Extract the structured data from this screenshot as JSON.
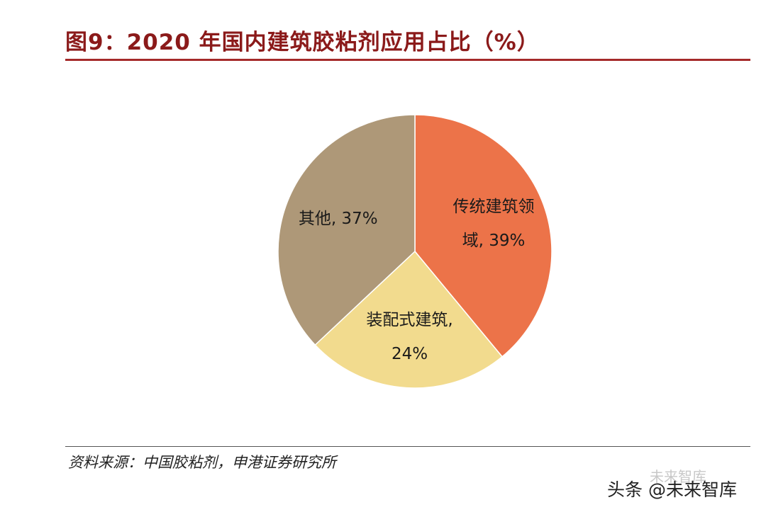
{
  "header": {
    "title": "图9：2020 年国内建筑胶粘剂应用占比（%）"
  },
  "chart_data": {
    "type": "pie",
    "title": "图9：2020 年国内建筑胶粘剂应用占比（%）",
    "start": "12 o'clock, clockwise",
    "slices": [
      {
        "label_lines": [
          "传统建筑领",
          "域, 39%"
        ],
        "value": 39,
        "color": "#ec7349"
      },
      {
        "label_lines": [
          "装配式建筑,",
          "24%"
        ],
        "value": 24,
        "color": "#f2db8e"
      },
      {
        "label_lines": [
          "其他, 37%"
        ],
        "value": 37,
        "color": "#ae9878"
      }
    ]
  },
  "footer": {
    "source": "资料来源：中国胶粘剂，申港证券研究所",
    "watermark": "头条 @未来智库",
    "watermark_ghost": "未来智库"
  }
}
